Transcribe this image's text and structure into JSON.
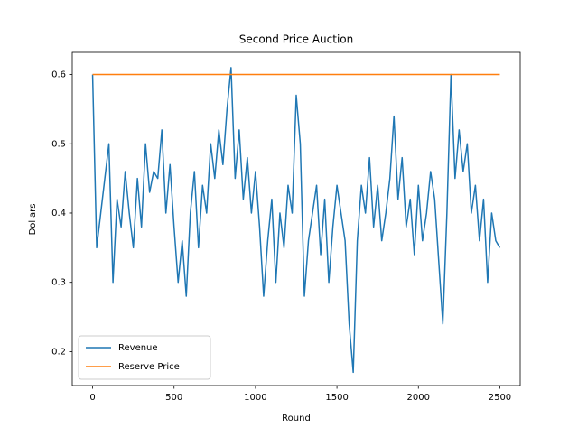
{
  "chart_data": {
    "type": "line",
    "title": "Second Price Auction",
    "xlabel": "Round",
    "ylabel": "Dollars",
    "xlim": [
      -125,
      2625
    ],
    "ylim": [
      0.151,
      0.632
    ],
    "xticks": [
      0,
      500,
      1000,
      1500,
      2000,
      2500
    ],
    "yticks": [
      0.2,
      0.3,
      0.4,
      0.5,
      0.6
    ],
    "grid": false,
    "legend": "lower left",
    "series": [
      {
        "name": "Revenue",
        "color": "#1f77b4",
        "x": [
          0,
          25,
          50,
          75,
          100,
          125,
          150,
          175,
          200,
          225,
          250,
          275,
          300,
          325,
          350,
          375,
          400,
          425,
          450,
          475,
          500,
          525,
          550,
          575,
          600,
          625,
          650,
          675,
          700,
          725,
          750,
          775,
          800,
          825,
          850,
          875,
          900,
          925,
          950,
          975,
          1000,
          1025,
          1050,
          1075,
          1100,
          1125,
          1150,
          1175,
          1200,
          1225,
          1250,
          1275,
          1300,
          1325,
          1350,
          1375,
          1400,
          1425,
          1450,
          1475,
          1500,
          1525,
          1550,
          1575,
          1600,
          1625,
          1650,
          1675,
          1700,
          1725,
          1750,
          1775,
          1800,
          1825,
          1850,
          1875,
          1900,
          1925,
          1950,
          1975,
          2000,
          2025,
          2050,
          2075,
          2100,
          2125,
          2150,
          2175,
          2200,
          2225,
          2250,
          2275,
          2300,
          2325,
          2350,
          2375,
          2400,
          2425,
          2450,
          2475,
          2500
        ],
        "values": [
          0.6,
          0.35,
          0.4,
          0.45,
          0.5,
          0.3,
          0.42,
          0.38,
          0.46,
          0.4,
          0.35,
          0.45,
          0.38,
          0.5,
          0.43,
          0.46,
          0.45,
          0.52,
          0.4,
          0.47,
          0.38,
          0.3,
          0.36,
          0.28,
          0.4,
          0.46,
          0.35,
          0.44,
          0.4,
          0.5,
          0.45,
          0.52,
          0.47,
          0.55,
          0.61,
          0.45,
          0.52,
          0.42,
          0.48,
          0.4,
          0.46,
          0.38,
          0.28,
          0.36,
          0.42,
          0.3,
          0.4,
          0.35,
          0.44,
          0.4,
          0.57,
          0.5,
          0.28,
          0.36,
          0.4,
          0.44,
          0.34,
          0.42,
          0.3,
          0.38,
          0.44,
          0.4,
          0.36,
          0.24,
          0.17,
          0.36,
          0.44,
          0.4,
          0.48,
          0.38,
          0.44,
          0.36,
          0.4,
          0.45,
          0.54,
          0.42,
          0.48,
          0.38,
          0.42,
          0.34,
          0.44,
          0.36,
          0.4,
          0.46,
          0.42,
          0.33,
          0.24,
          0.4,
          0.6,
          0.45,
          0.52,
          0.46,
          0.5,
          0.4,
          0.44,
          0.36,
          0.42,
          0.3,
          0.4,
          0.36,
          0.35
        ]
      },
      {
        "name": "Reserve Price",
        "color": "#ff7f0e",
        "x": [
          0,
          2500
        ],
        "values": [
          0.6,
          0.6
        ]
      }
    ]
  }
}
